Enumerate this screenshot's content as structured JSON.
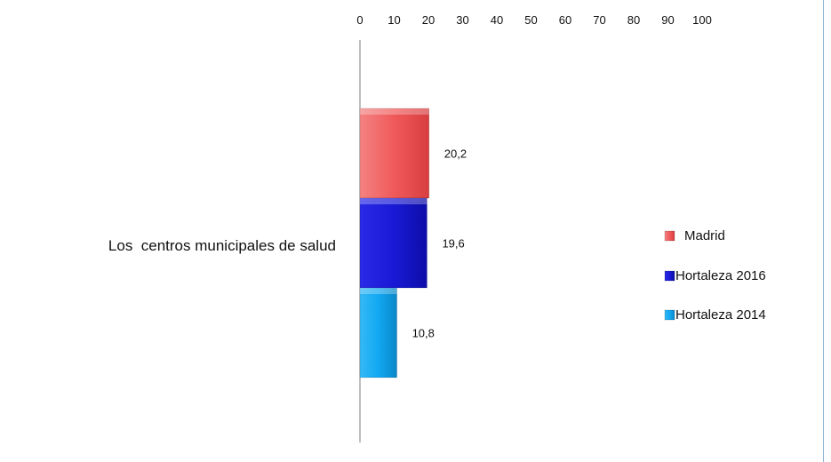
{
  "chart_data": {
    "type": "bar",
    "orientation": "horizontal",
    "categories": [
      "Los  centros municipales de salud"
    ],
    "series": [
      {
        "name": "Madrid",
        "values": [
          20.2
        ],
        "label": "20,2",
        "color": "#f0595a"
      },
      {
        "name": "Hortaleza 2016",
        "values": [
          19.6
        ],
        "label": "19,6",
        "color": "#1a1ad6"
      },
      {
        "name": "Hortaleza 2014",
        "values": [
          10.8
        ],
        "label": "10,8",
        "color": "#12a8f2"
      }
    ],
    "x_ticks": [
      "0",
      "10",
      "20",
      "30",
      "40",
      "50",
      "60",
      "70",
      "80",
      "90",
      "100"
    ],
    "xlim": [
      0,
      100
    ],
    "x_axis_position": "top",
    "grid": false,
    "legend_position": "right"
  }
}
